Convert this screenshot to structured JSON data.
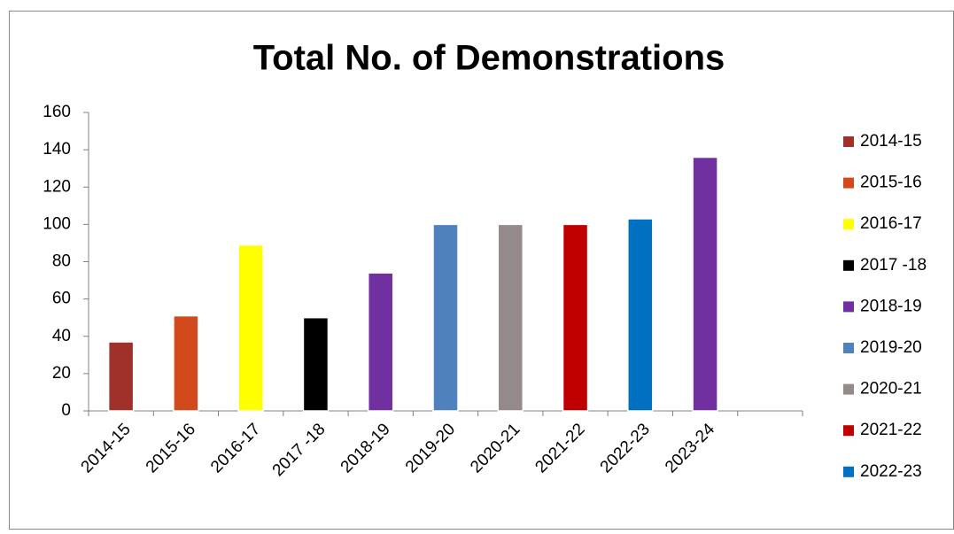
{
  "chart_data": {
    "type": "bar",
    "title": "Total No. of Demonstrations",
    "categories": [
      "2014-15",
      "2015-16",
      "2016-17",
      "2017 -18",
      "2018-19",
      "2019-20",
      "2020-21",
      "2021-22",
      "2022-23",
      "2023-24",
      null
    ],
    "values": [
      37,
      51,
      89,
      50,
      74,
      100,
      100,
      100,
      103,
      136,
      null
    ],
    "colors": [
      "#a0312a",
      "#d24a1b",
      "#ffff00",
      "#000000",
      "#7030a0",
      "#4f81bd",
      "#948a8a",
      "#c00000",
      "#0070c0",
      "#7030a0",
      null
    ],
    "legend": [
      "2014-15",
      "2015-16",
      "2016-17",
      "2017 -18",
      "2018-19",
      "2019-20",
      "2020-21",
      "2021-22",
      "2022-23"
    ],
    "ylim": [
      0,
      160
    ],
    "yticks": [
      0,
      20,
      40,
      60,
      80,
      100,
      120,
      140,
      160
    ],
    "grid": false,
    "legend_position": "right"
  }
}
